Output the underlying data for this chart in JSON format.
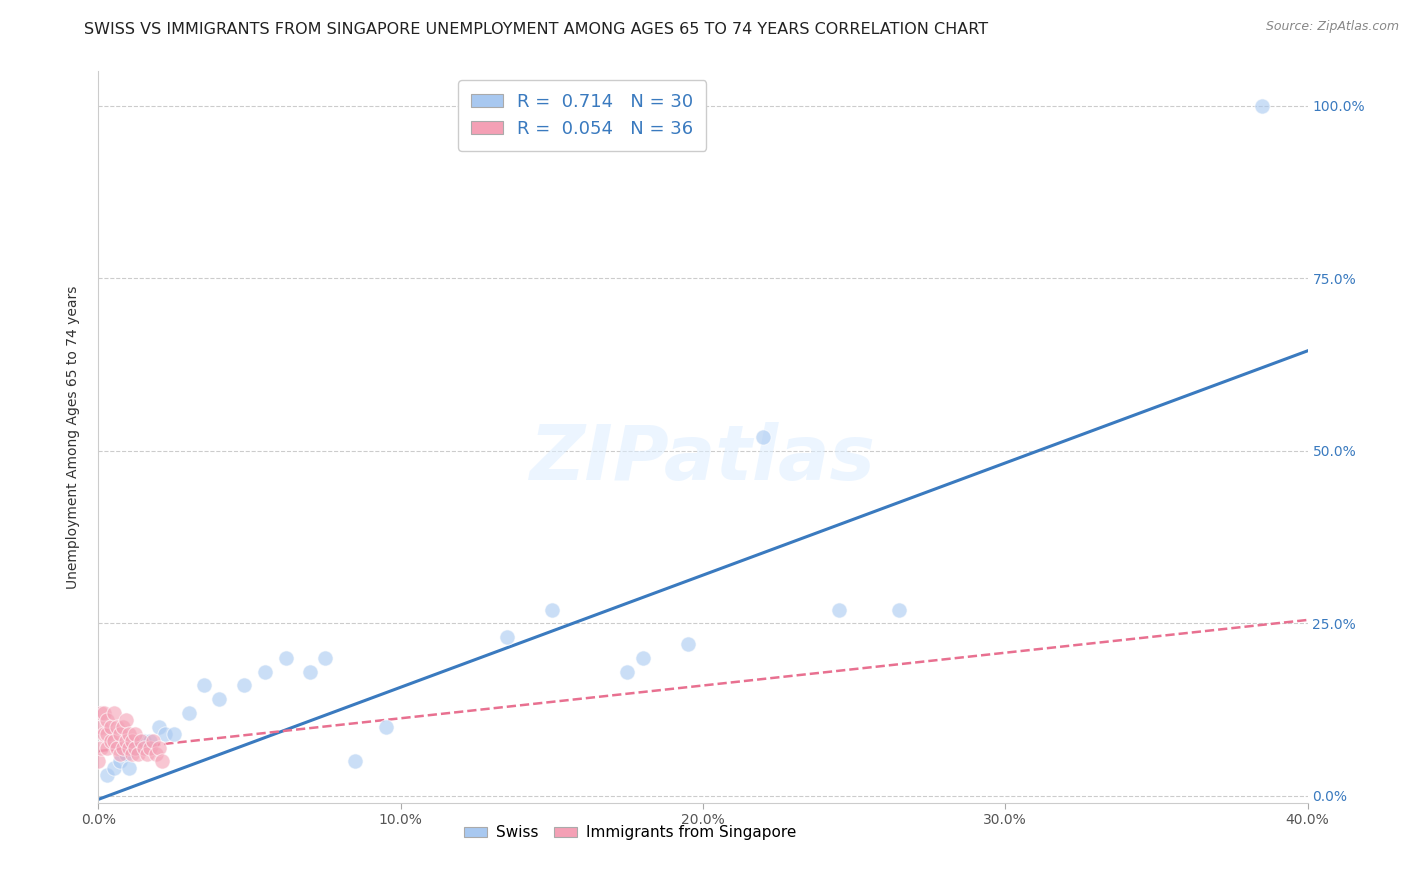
{
  "title": "SWISS VS IMMIGRANTS FROM SINGAPORE UNEMPLOYMENT AMONG AGES 65 TO 74 YEARS CORRELATION CHART",
  "source": "Source: ZipAtlas.com",
  "ylabel": "Unemployment Among Ages 65 to 74 years",
  "xlim": [
    0.0,
    0.4
  ],
  "ylim": [
    -0.01,
    1.05
  ],
  "xticks": [
    0.0,
    0.1,
    0.2,
    0.3,
    0.4
  ],
  "yticks": [
    0.0,
    0.25,
    0.5,
    0.75,
    1.0
  ],
  "xtick_labels": [
    "0.0%",
    "10.0%",
    "20.0%",
    "30.0%",
    "40.0%"
  ],
  "ytick_labels": [
    "0.0%",
    "25.0%",
    "50.0%",
    "75.0%",
    "100.0%"
  ],
  "swiss_color": "#a8c8f0",
  "singapore_color": "#f4a0b5",
  "swiss_R": 0.714,
  "swiss_N": 30,
  "singapore_R": 0.054,
  "singapore_N": 36,
  "swiss_line_color": "#3a7abf",
  "singapore_line_color": "#e87090",
  "background_color": "#ffffff",
  "grid_color": "#cccccc",
  "swiss_scatter_x": [
    0.003,
    0.005,
    0.007,
    0.009,
    0.01,
    0.012,
    0.015,
    0.017,
    0.02,
    0.022,
    0.025,
    0.03,
    0.035,
    0.04,
    0.048,
    0.055,
    0.062,
    0.07,
    0.075,
    0.085,
    0.095,
    0.135,
    0.15,
    0.175,
    0.18,
    0.195,
    0.22,
    0.245,
    0.265,
    0.385
  ],
  "swiss_scatter_y": [
    0.03,
    0.04,
    0.05,
    0.06,
    0.04,
    0.07,
    0.08,
    0.08,
    0.1,
    0.09,
    0.09,
    0.12,
    0.16,
    0.14,
    0.16,
    0.18,
    0.2,
    0.18,
    0.2,
    0.05,
    0.1,
    0.23,
    0.27,
    0.18,
    0.2,
    0.22,
    0.52,
    0.27,
    0.27,
    1.0
  ],
  "singapore_scatter_x": [
    0.0,
    0.001,
    0.001,
    0.001,
    0.002,
    0.002,
    0.003,
    0.003,
    0.003,
    0.004,
    0.004,
    0.005,
    0.005,
    0.006,
    0.006,
    0.007,
    0.007,
    0.008,
    0.008,
    0.009,
    0.009,
    0.01,
    0.01,
    0.011,
    0.011,
    0.012,
    0.012,
    0.013,
    0.014,
    0.015,
    0.016,
    0.017,
    0.018,
    0.019,
    0.02,
    0.021
  ],
  "singapore_scatter_y": [
    0.05,
    0.1,
    0.12,
    0.07,
    0.09,
    0.12,
    0.07,
    0.09,
    0.11,
    0.08,
    0.1,
    0.08,
    0.12,
    0.07,
    0.1,
    0.06,
    0.09,
    0.07,
    0.1,
    0.08,
    0.11,
    0.07,
    0.09,
    0.06,
    0.08,
    0.07,
    0.09,
    0.06,
    0.08,
    0.07,
    0.06,
    0.07,
    0.08,
    0.06,
    0.07,
    0.05
  ],
  "swiss_line_x0": 0.0,
  "swiss_line_y0": -0.005,
  "swiss_line_x1": 0.4,
  "swiss_line_y1": 0.645,
  "singapore_line_x0": 0.0,
  "singapore_line_y0": 0.065,
  "singapore_line_x1": 0.4,
  "singapore_line_y1": 0.255,
  "watermark": "ZIPatlas",
  "title_fontsize": 11.5,
  "label_fontsize": 10,
  "tick_fontsize": 10,
  "marker_size": 120,
  "marker_alpha": 0.6
}
